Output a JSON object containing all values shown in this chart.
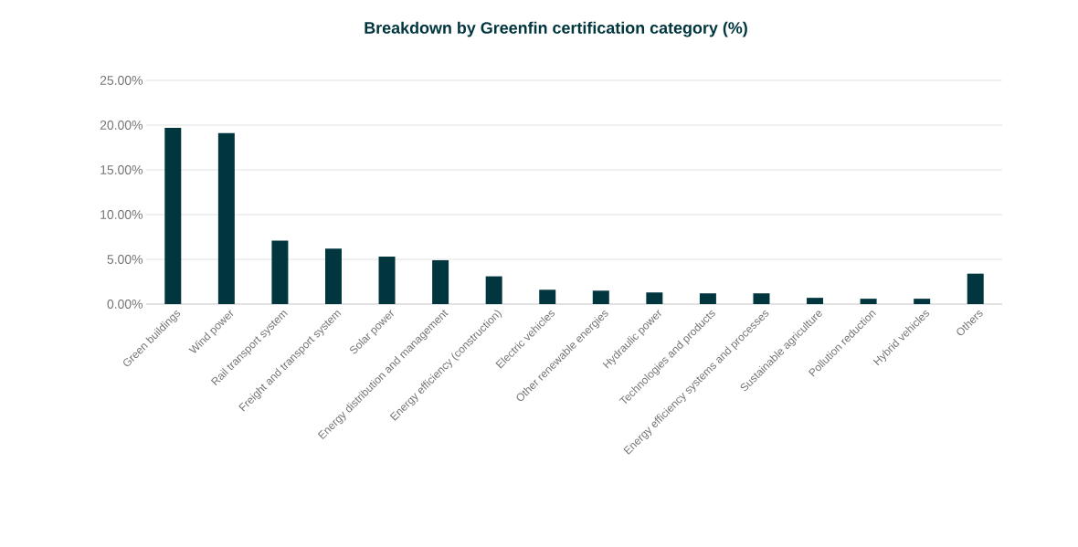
{
  "chart_data": {
    "type": "bar",
    "title": "Breakdown by Greenfin certification category (%)",
    "categories": [
      "Green buildings",
      "Wind power",
      "Rail transport system",
      "Freight and transport system",
      "Solar power",
      "Energy distribution and management",
      "Energy efficiency (construction)",
      "Electric vehicles",
      "Other renewable energies",
      "Hydraulic power",
      "Technologies and products",
      "Energy efficiency systems and processes",
      "Sustainable agriculture",
      "Pollution reduction",
      "Hybrid vehicles",
      "Others"
    ],
    "values": [
      19.7,
      19.1,
      7.1,
      6.2,
      5.3,
      4.9,
      3.1,
      1.6,
      1.5,
      1.3,
      1.2,
      1.2,
      0.7,
      0.6,
      0.6,
      3.4
    ],
    "color": "#02363f",
    "ylim": [
      0,
      25
    ],
    "yticks": [
      {
        "value": 0,
        "label": "0.00%"
      },
      {
        "value": 5,
        "label": "5.00%"
      },
      {
        "value": 10,
        "label": "10.00%"
      },
      {
        "value": 15,
        "label": "15.00%"
      },
      {
        "value": 20,
        "label": "20.00%"
      },
      {
        "value": 25,
        "label": "25.00%"
      }
    ],
    "grid": "y"
  }
}
